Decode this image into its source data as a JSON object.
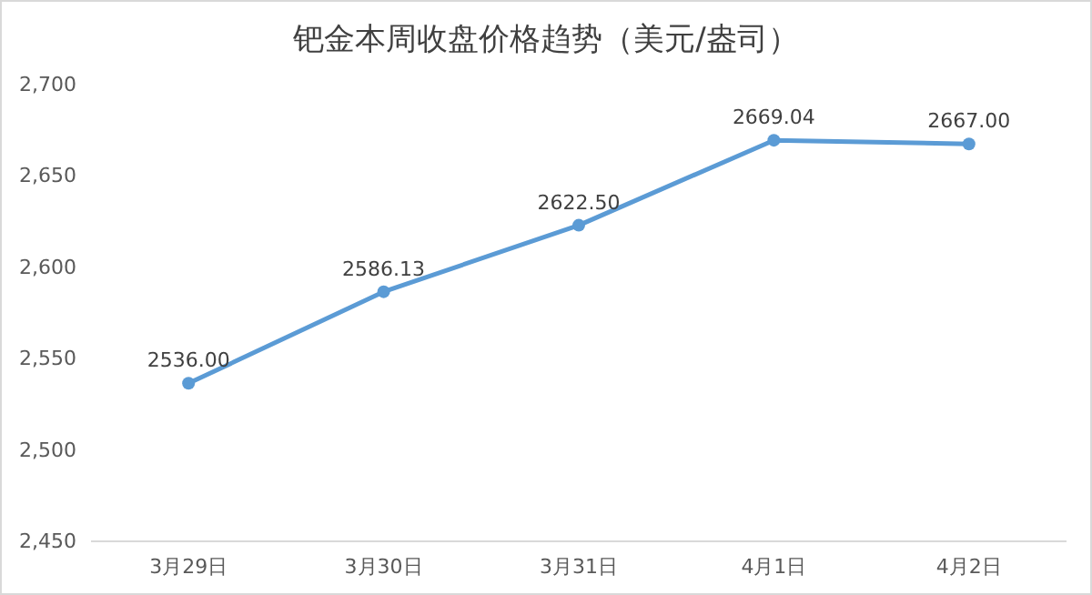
{
  "chart_data": {
    "type": "line",
    "title": "钯金本周收盘价格趋势（美元/盎司）",
    "categories": [
      "3月29日",
      "3月30日",
      "3月31日",
      "4月1日",
      "4月2日"
    ],
    "values": [
      2536.0,
      2586.13,
      2622.5,
      2669.04,
      2667.0
    ],
    "value_labels": [
      "2536.00",
      "2586.13",
      "2622.50",
      "2669.04",
      "2667.00"
    ],
    "color": "#5b9bd5",
    "marker": "circle",
    "ylim": [
      2450,
      2700
    ],
    "yticks": [
      {
        "value": 2450,
        "label": "2,450"
      },
      {
        "value": 2500,
        "label": "2,500"
      },
      {
        "value": 2550,
        "label": "2,550"
      },
      {
        "value": 2600,
        "label": "2,600"
      },
      {
        "value": 2650,
        "label": "2,650"
      },
      {
        "value": 2700,
        "label": "2,700"
      }
    ]
  }
}
